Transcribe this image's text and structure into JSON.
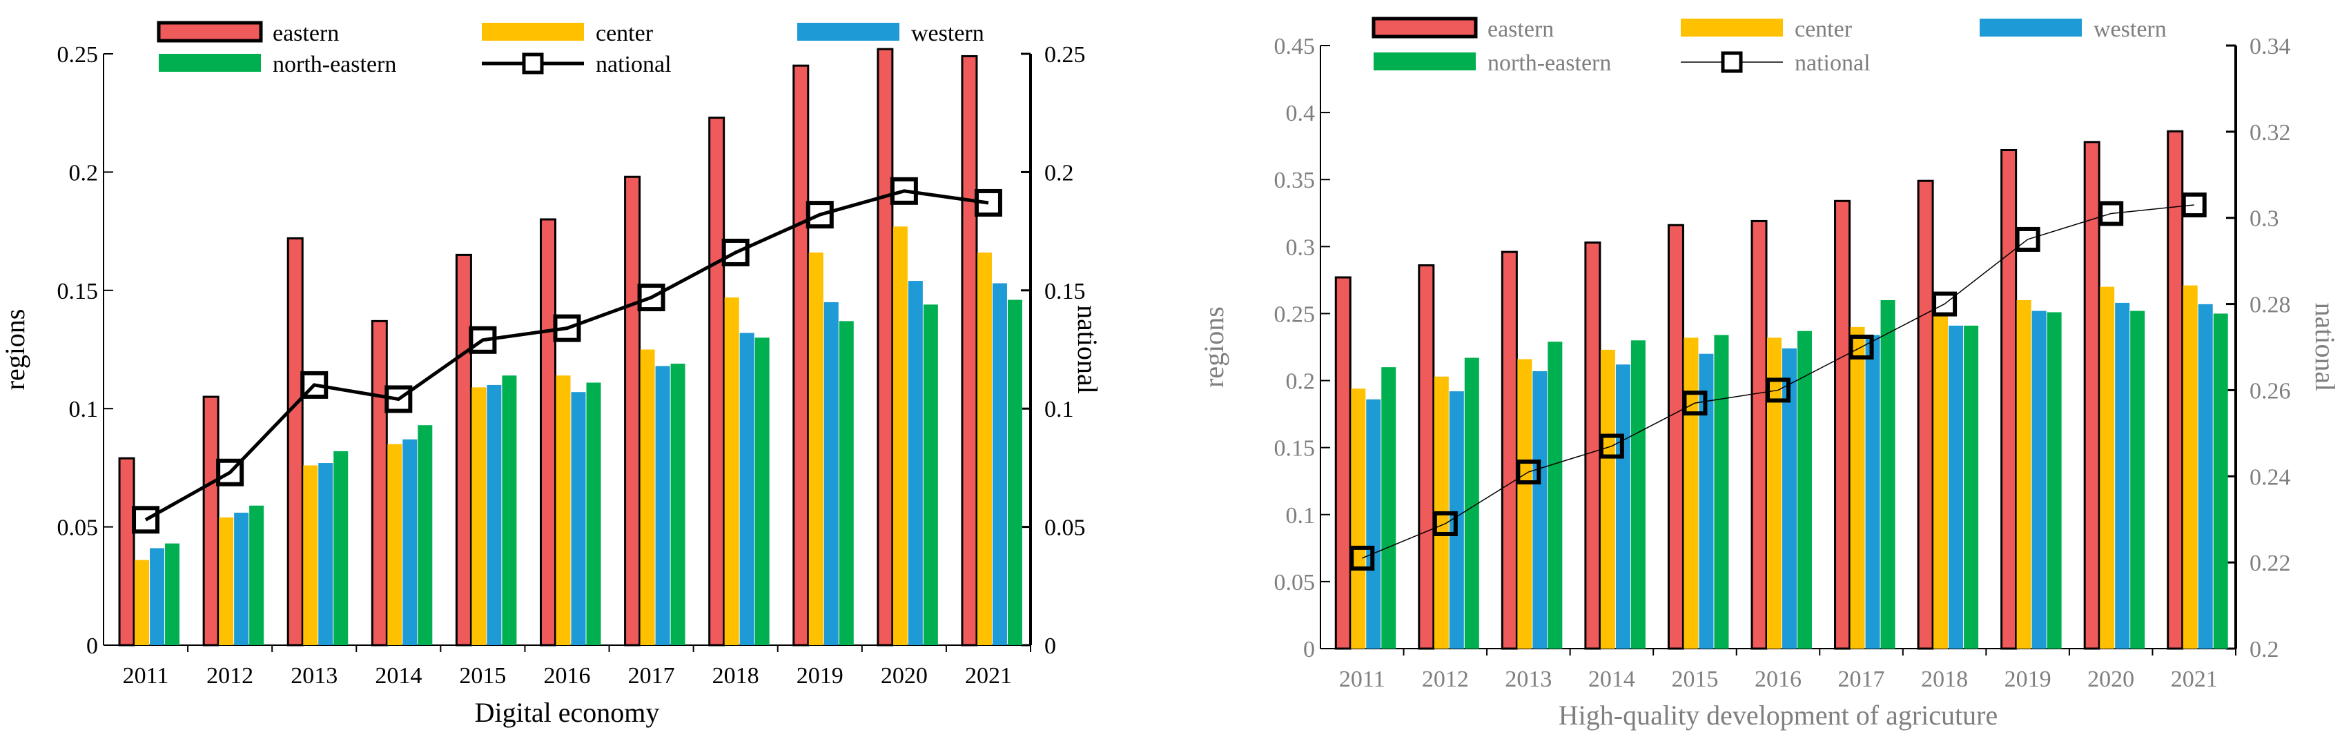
{
  "chart_data": [
    {
      "type": "bar",
      "title": "",
      "xlabel": "Digital economy",
      "ylabel": "regions",
      "y2label": "national",
      "categories": [
        "2011",
        "2012",
        "2013",
        "2014",
        "2015",
        "2016",
        "2017",
        "2018",
        "2019",
        "2020",
        "2021"
      ],
      "ylim": [
        0,
        0.25
      ],
      "y2lim": [
        0,
        0.25
      ],
      "yticks": [
        "0",
        "0.05",
        "0.1",
        "0.15",
        "0.2",
        "0.25"
      ],
      "y2ticks": [
        "0",
        "0.05",
        "0.1",
        "0.15",
        "0.2",
        "0.25"
      ],
      "text_color": "#000000",
      "series": [
        {
          "name": " eastern",
          "kind": "bar",
          "color": "#ef5a5a",
          "outline": true,
          "values": [
            0.079,
            0.105,
            0.172,
            0.137,
            0.165,
            0.18,
            0.198,
            0.223,
            0.245,
            0.252,
            0.249
          ]
        },
        {
          "name": "center",
          "kind": "bar",
          "color": "#ffc000",
          "values": [
            0.036,
            0.054,
            0.076,
            0.085,
            0.109,
            0.114,
            0.125,
            0.147,
            0.166,
            0.177,
            0.166
          ]
        },
        {
          "name": "western",
          "kind": "bar",
          "color": "#1e9ad6",
          "values": [
            0.041,
            0.056,
            0.077,
            0.087,
            0.11,
            0.107,
            0.118,
            0.132,
            0.145,
            0.154,
            0.153
          ]
        },
        {
          "name": "north-eastern",
          "kind": "bar",
          "color": "#00b050",
          "values": [
            0.043,
            0.059,
            0.082,
            0.093,
            0.114,
            0.111,
            0.119,
            0.13,
            0.137,
            0.144,
            0.146
          ]
        },
        {
          "name": "national",
          "kind": "line",
          "axis": "y2",
          "color": "#000000",
          "values": [
            0.053,
            0.073,
            0.11,
            0.104,
            0.129,
            0.134,
            0.147,
            0.166,
            0.182,
            0.192,
            0.187
          ]
        }
      ]
    },
    {
      "type": "bar",
      "title": "",
      "xlabel": "High-quality development of agricuture",
      "ylabel": "regions",
      "y2label": "national",
      "categories": [
        "2011",
        "2012",
        "2013",
        "2014",
        "2015",
        "2016",
        "2017",
        "2018",
        "2019",
        "2020",
        "2021"
      ],
      "ylim": [
        0,
        0.45
      ],
      "y2lim": [
        0.2,
        0.34
      ],
      "yticks": [
        "0",
        "0.05",
        "0.1",
        "0.15",
        "0.2",
        "0.25",
        "0.3",
        "0.35",
        "0.4",
        "0.45"
      ],
      "y2ticks": [
        "0.2",
        "0.22",
        "0.24",
        "0.26",
        "0.28",
        "0.3",
        "0.32",
        "0.34"
      ],
      "text_color": "#7f7f7f",
      "series": [
        {
          "name": "eastern",
          "kind": "bar",
          "color": "#ef5a5a",
          "outline": true,
          "values": [
            0.277,
            0.286,
            0.296,
            0.303,
            0.316,
            0.319,
            0.334,
            0.349,
            0.372,
            0.378,
            0.386
          ]
        },
        {
          "name": "center",
          "kind": "bar",
          "color": "#ffc000",
          "values": [
            0.194,
            0.203,
            0.216,
            0.223,
            0.232,
            0.232,
            0.24,
            0.248,
            0.26,
            0.27,
            0.271
          ]
        },
        {
          "name": "western",
          "kind": "bar",
          "color": "#1e9ad6",
          "values": [
            0.186,
            0.192,
            0.207,
            0.212,
            0.22,
            0.224,
            0.234,
            0.241,
            0.252,
            0.258,
            0.257
          ]
        },
        {
          "name": "north-eastern",
          "kind": "bar",
          "color": "#00b050",
          "values": [
            0.21,
            0.217,
            0.229,
            0.23,
            0.234,
            0.237,
            0.26,
            0.241,
            0.251,
            0.252,
            0.25
          ]
        },
        {
          "name": "national",
          "kind": "line",
          "axis": "y2",
          "color": "#000000",
          "values": [
            0.221,
            0.229,
            0.241,
            0.247,
            0.257,
            0.26,
            0.27,
            0.28,
            0.295,
            0.301,
            0.303
          ]
        }
      ]
    }
  ]
}
